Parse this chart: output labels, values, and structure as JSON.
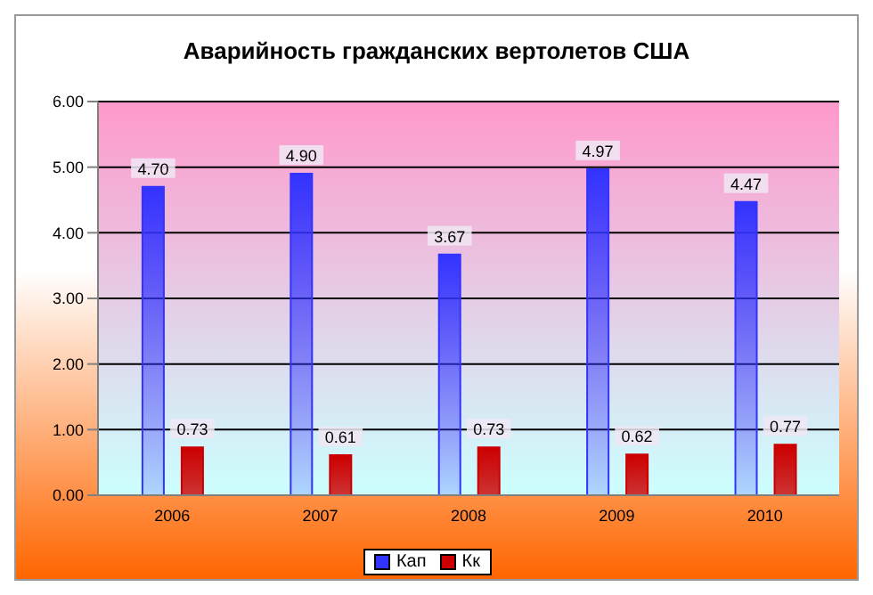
{
  "chart_data": {
    "type": "bar",
    "title": "Аварийность гражданских вертолетов США",
    "categories": [
      "2006",
      "2007",
      "2008",
      "2009",
      "2010"
    ],
    "series": [
      {
        "name": "Кап",
        "color": "#3333ff",
        "values": [
          4.7,
          4.9,
          3.67,
          4.97,
          4.47
        ],
        "value_labels": [
          "4.70",
          "4.90",
          "3.67",
          "4.97",
          "4.47"
        ]
      },
      {
        "name": "Кк",
        "color": "#cc0000",
        "values": [
          0.73,
          0.61,
          0.73,
          0.62,
          0.77
        ],
        "value_labels": [
          "0.73",
          "0.61",
          "0.73",
          "0.62",
          "0.77"
        ]
      }
    ],
    "ylim": [
      0,
      6
    ],
    "yticks": [
      {
        "value": 0,
        "label": "0.00"
      },
      {
        "value": 1,
        "label": "1.00"
      },
      {
        "value": 2,
        "label": "2.00"
      },
      {
        "value": 3,
        "label": "3.00"
      },
      {
        "value": 4,
        "label": "4.00"
      },
      {
        "value": 5,
        "label": "5.00"
      },
      {
        "value": 6,
        "label": "6.00"
      }
    ],
    "grid": "y",
    "legend": "bottom"
  }
}
